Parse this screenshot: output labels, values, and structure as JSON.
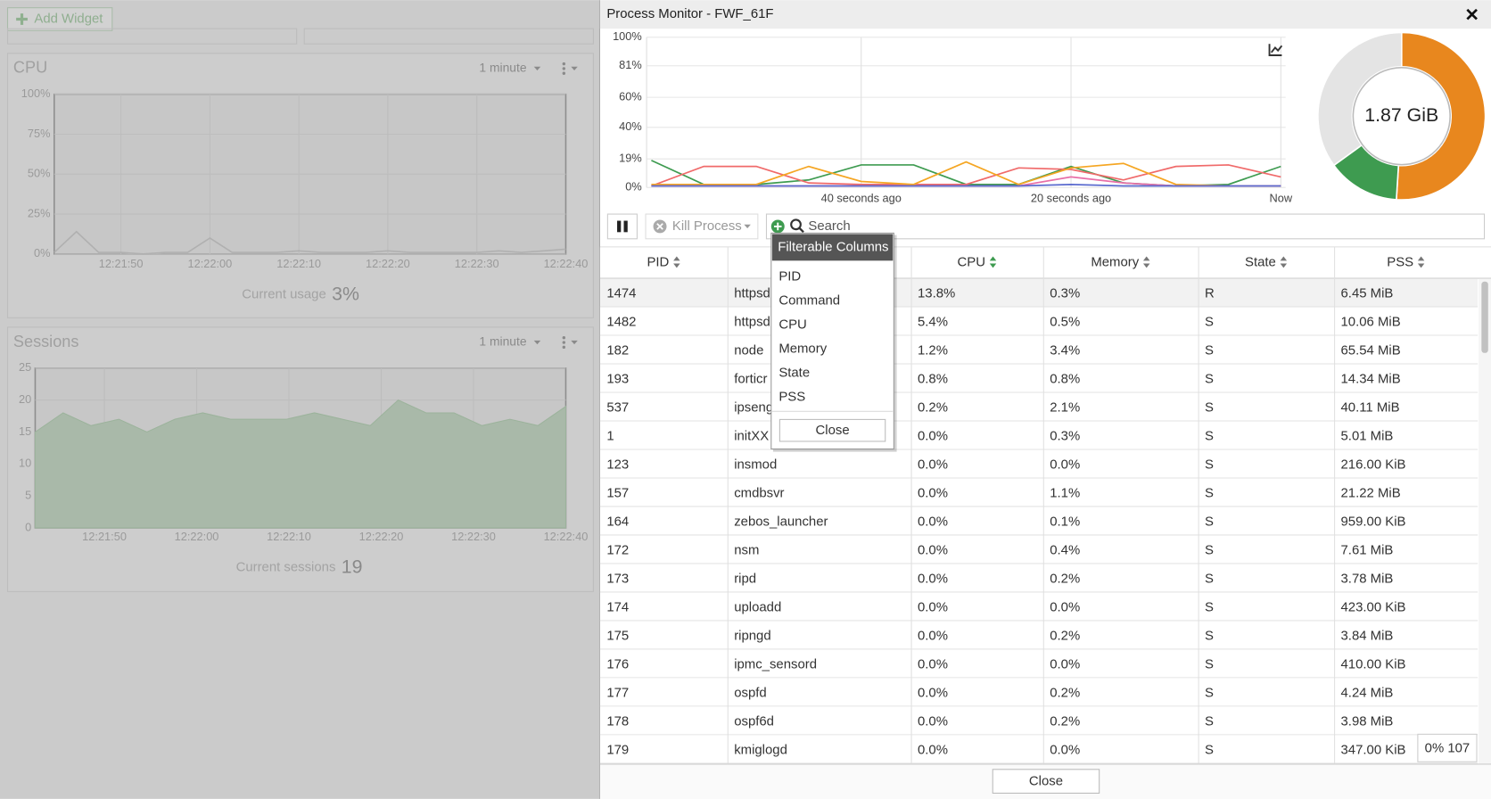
{
  "dashboard": {
    "add_widget": "Add Widget",
    "widgets": [
      {
        "title": "CPU",
        "period": "1 minute",
        "type": "line",
        "ylim": [
          0,
          100
        ],
        "yticks": [
          {
            "value": 100,
            "label": "100%"
          },
          {
            "value": 75,
            "label": "75%"
          },
          {
            "value": 50,
            "label": "50%"
          },
          {
            "value": 25,
            "label": "25%"
          },
          {
            "value": 0,
            "label": "0%"
          }
        ],
        "xtick_labels": [
          "12:21:50",
          "12:22:00",
          "12:22:10",
          "12:22:20",
          "12:22:30",
          "12:22:40"
        ],
        "values": [
          1,
          14,
          1,
          1,
          0,
          1,
          1,
          10,
          1,
          1,
          1,
          2,
          1,
          1,
          1,
          2,
          1,
          1,
          1,
          1,
          2,
          1,
          2,
          3
        ],
        "color": "#b0b0b0",
        "footer_label": "Current usage",
        "footer_value": "3%"
      },
      {
        "title": "Sessions",
        "period": "1 minute",
        "type": "area",
        "ylim": [
          0,
          25
        ],
        "yticks": [
          25,
          20,
          15,
          10,
          5,
          0
        ],
        "xtick_labels": [
          "12:21:50",
          "12:22:00",
          "12:22:10",
          "12:22:20",
          "12:22:30",
          "12:22:40"
        ],
        "values": [
          15,
          18,
          16,
          17,
          15,
          17,
          18,
          17,
          17,
          17,
          18,
          17,
          16,
          20,
          18,
          18,
          16,
          17,
          16,
          19
        ],
        "color": "#a9b9a9",
        "footer_label": "Current sessions",
        "footer_value": "19"
      }
    ]
  },
  "process_monitor": {
    "title": "Process Monitor - FWF_61F",
    "chart": {
      "type": "line",
      "xlim": [
        -60,
        0
      ],
      "xticks": [
        {
          "value": -40,
          "label": "40 seconds ago"
        },
        {
          "value": -20,
          "label": "20 seconds ago"
        },
        {
          "value": 0,
          "label": "Now"
        }
      ],
      "ylim": [
        0,
        100
      ],
      "yticks": [
        {
          "value": 100,
          "label": "100%"
        },
        {
          "value": 81,
          "label": "81%"
        },
        {
          "value": 60,
          "label": "60%"
        },
        {
          "value": 40,
          "label": "40%"
        },
        {
          "value": 19,
          "label": "19%"
        },
        {
          "value": 0,
          "label": "0%"
        }
      ],
      "x": [
        -60,
        -55,
        -50,
        -45,
        -40,
        -35,
        -30,
        -25,
        -20,
        -15,
        -10,
        -5,
        0
      ],
      "series": [
        {
          "color": "#3e9b50",
          "values": [
            18,
            2,
            2,
            5,
            15,
            15,
            2,
            2,
            14,
            3,
            1,
            2,
            14
          ]
        },
        {
          "color": "#f06a6a",
          "values": [
            1,
            14,
            14,
            3,
            2,
            2,
            2,
            13,
            12,
            5,
            14,
            15,
            7
          ]
        },
        {
          "color": "#f5a623",
          "values": [
            2,
            2,
            2,
            14,
            4,
            2,
            17,
            2,
            13,
            16,
            2,
            1,
            1
          ]
        },
        {
          "color": "#e86fa8",
          "values": [
            1,
            1,
            1,
            1,
            1,
            1,
            1,
            1,
            7,
            3,
            1,
            1,
            1
          ]
        },
        {
          "color": "#5b6bcf",
          "values": [
            1,
            1,
            1,
            1,
            1,
            1,
            1,
            1,
            2,
            1,
            1,
            1,
            1
          ]
        }
      ]
    },
    "memory": {
      "type": "pie",
      "label": "1.87 GiB",
      "values": [
        51,
        14,
        35
      ],
      "colors": [
        "#e8871e",
        "#3e9b50",
        "#e4e4e4"
      ]
    },
    "toolbar": {
      "kill_process": "Kill Process",
      "search_placeholder": "Search"
    },
    "table": {
      "columns": [
        "PID",
        null,
        "CPU",
        "Memory",
        "State",
        "PSS"
      ],
      "rows": [
        [
          "1474",
          "httpsd",
          "13.8%",
          "0.3%",
          "R",
          "6.45 MiB"
        ],
        [
          "1482",
          "httpsd",
          "5.4%",
          "0.5%",
          "S",
          "10.06 MiB"
        ],
        [
          "182",
          "node",
          "1.2%",
          "3.4%",
          "S",
          "65.54 MiB"
        ],
        [
          "193",
          "forticr",
          "0.8%",
          "0.8%",
          "S",
          "14.34 MiB"
        ],
        [
          "537",
          "ipseng",
          "0.2%",
          "2.1%",
          "S",
          "40.11 MiB"
        ],
        [
          "1",
          "initXX",
          "0.0%",
          "0.3%",
          "S",
          "5.01 MiB"
        ],
        [
          "123",
          "insmod",
          "0.0%",
          "0.0%",
          "S",
          "216.00 KiB"
        ],
        [
          "157",
          "cmdbsvr",
          "0.0%",
          "1.1%",
          "S",
          "21.22 MiB"
        ],
        [
          "164",
          "zebos_launcher",
          "0.0%",
          "0.1%",
          "S",
          "959.00 KiB"
        ],
        [
          "172",
          "nsm",
          "0.0%",
          "0.4%",
          "S",
          "7.61 MiB"
        ],
        [
          "173",
          "ripd",
          "0.0%",
          "0.2%",
          "S",
          "3.78 MiB"
        ],
        [
          "174",
          "uploadd",
          "0.0%",
          "0.0%",
          "S",
          "423.00 KiB"
        ],
        [
          "175",
          "ripngd",
          "0.0%",
          "0.2%",
          "S",
          "3.84 MiB"
        ],
        [
          "176",
          "ipmc_sensord",
          "0.0%",
          "0.0%",
          "S",
          "410.00 KiB"
        ],
        [
          "177",
          "ospfd",
          "0.0%",
          "0.2%",
          "S",
          "4.24 MiB"
        ],
        [
          "178",
          "ospf6d",
          "0.0%",
          "0.2%",
          "S",
          "3.98 MiB"
        ],
        [
          "179",
          "kmiglogd",
          "0.0%",
          "0.0%",
          "S",
          "347.00 KiB"
        ]
      ]
    },
    "filter_menu": {
      "title": "Filterable Columns",
      "items": [
        "PID",
        "Command",
        "CPU",
        "Memory",
        "State",
        "PSS"
      ],
      "close": "Close"
    },
    "footer": {
      "close": "Close",
      "badge": "0% 107"
    }
  }
}
